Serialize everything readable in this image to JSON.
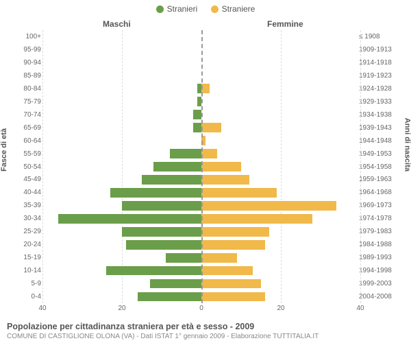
{
  "legend": {
    "male": {
      "label": "Stranieri",
      "color": "#6b9e4a"
    },
    "female": {
      "label": "Straniere",
      "color": "#f0b94a"
    }
  },
  "column_headers": {
    "left": "Maschi",
    "right": "Femmine"
  },
  "axis_titles": {
    "left": "Fasce di età",
    "right": "Anni di nascita"
  },
  "chart": {
    "type": "population-pyramid",
    "x_max": 40,
    "x_ticks": [
      40,
      20,
      0,
      20,
      40
    ],
    "background_color": "#ffffff",
    "grid_color": "#dcdcdc",
    "center_line_color": "#999999",
    "bar_colors": {
      "male": "#6b9e4a",
      "female": "#f0b94a"
    },
    "rows": [
      {
        "age": "100+",
        "birth": "≤ 1908",
        "m": 0,
        "f": 0
      },
      {
        "age": "95-99",
        "birth": "1909-1913",
        "m": 0,
        "f": 0
      },
      {
        "age": "90-94",
        "birth": "1914-1918",
        "m": 0,
        "f": 0
      },
      {
        "age": "85-89",
        "birth": "1919-1923",
        "m": 0,
        "f": 0
      },
      {
        "age": "80-84",
        "birth": "1924-1928",
        "m": 1,
        "f": 2
      },
      {
        "age": "75-79",
        "birth": "1929-1933",
        "m": 1,
        "f": 0
      },
      {
        "age": "70-74",
        "birth": "1934-1938",
        "m": 2,
        "f": 0
      },
      {
        "age": "65-69",
        "birth": "1939-1943",
        "m": 2,
        "f": 5
      },
      {
        "age": "60-64",
        "birth": "1944-1948",
        "m": 0,
        "f": 1
      },
      {
        "age": "55-59",
        "birth": "1949-1953",
        "m": 8,
        "f": 4
      },
      {
        "age": "50-54",
        "birth": "1954-1958",
        "m": 12,
        "f": 10
      },
      {
        "age": "45-49",
        "birth": "1959-1963",
        "m": 15,
        "f": 12
      },
      {
        "age": "40-44",
        "birth": "1964-1968",
        "m": 23,
        "f": 19
      },
      {
        "age": "35-39",
        "birth": "1969-1973",
        "m": 20,
        "f": 34
      },
      {
        "age": "30-34",
        "birth": "1974-1978",
        "m": 36,
        "f": 28
      },
      {
        "age": "25-29",
        "birth": "1979-1983",
        "m": 20,
        "f": 17
      },
      {
        "age": "20-24",
        "birth": "1984-1988",
        "m": 19,
        "f": 16
      },
      {
        "age": "15-19",
        "birth": "1989-1993",
        "m": 9,
        "f": 9
      },
      {
        "age": "10-14",
        "birth": "1994-1998",
        "m": 24,
        "f": 13
      },
      {
        "age": "5-9",
        "birth": "1999-2003",
        "m": 13,
        "f": 15
      },
      {
        "age": "0-4",
        "birth": "2004-2008",
        "m": 16,
        "f": 16
      }
    ]
  },
  "footer": {
    "title": "Popolazione per cittadinanza straniera per età e sesso - 2009",
    "subtitle": "COMUNE DI CASTIGLIONE OLONA (VA) - Dati ISTAT 1° gennaio 2009 - Elaborazione TUTTITALIA.IT"
  }
}
